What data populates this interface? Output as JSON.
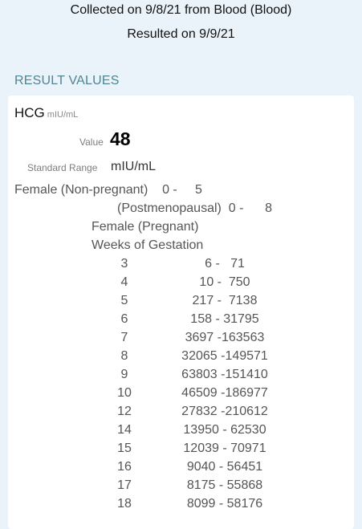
{
  "header": {
    "collected": "Collected on 9/8/21 from Blood (Blood)",
    "resulted": "Resulted on 9/9/21"
  },
  "section": {
    "title": "RESULT VALUES"
  },
  "result": {
    "name": "HCG",
    "unit": "mIU/mL",
    "value_label": "Value",
    "value": "48",
    "range_label": "Standard Range",
    "range_unit": "mIU/mL"
  },
  "reference_lines": [
    "Female (Non-pregnant)    0 -     5",
    "(Postmenopausal)  0 -      8",
    "Female (Pregnant)",
    "Weeks of Gestation"
  ],
  "gestation_table": [
    {
      "week": "3",
      "range": "6 -   71"
    },
    {
      "week": "4",
      "range": "10 -  750"
    },
    {
      "week": "5",
      "range": "217 -  7138"
    },
    {
      "week": "6",
      "range": "158 - 31795"
    },
    {
      "week": "7",
      "range": "3697 -163563"
    },
    {
      "week": "8",
      "range": "32065 -149571"
    },
    {
      "week": "9",
      "range": "63803 -151410"
    },
    {
      "week": "10",
      "range": "46509 -186977"
    },
    {
      "week": "12",
      "range": "27832 -210612"
    },
    {
      "week": "14",
      "range": "13950 - 62530"
    },
    {
      "week": "15",
      "range": "12039 - 70971"
    },
    {
      "week": "16",
      "range": "9040 - 56451"
    },
    {
      "week": "17",
      "range": "8175 - 55868"
    },
    {
      "week": "18",
      "range": "8099 - 58176"
    }
  ]
}
